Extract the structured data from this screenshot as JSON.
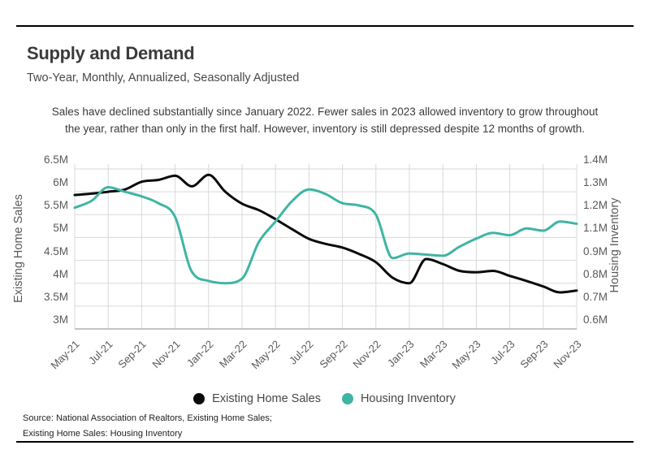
{
  "header": {
    "title": "Supply and Demand",
    "subtitle": "Two-Year, Monthly, Annualized, Seasonally Adjusted"
  },
  "annotation": {
    "line1": "Sales have declined substantially since January 2022. Fewer sales in 2023 allowed inventory to grow throughout",
    "line2": "the year, rather than only in the first half. However, inventory is still depressed despite 12 months of growth."
  },
  "chart_data": {
    "type": "line",
    "x": [
      "May-21",
      "Jun-21",
      "Jul-21",
      "Aug-21",
      "Sep-21",
      "Oct-21",
      "Nov-21",
      "Dec-21",
      "Jan-22",
      "Feb-22",
      "Mar-22",
      "Apr-22",
      "May-22",
      "Jun-22",
      "Jul-22",
      "Aug-22",
      "Sep-22",
      "Oct-22",
      "Nov-22",
      "Dec-22",
      "Jan-23",
      "Feb-23",
      "Mar-23",
      "Apr-23",
      "May-23",
      "Jun-23",
      "Jul-23",
      "Aug-23",
      "Sep-23",
      "Oct-23",
      "Nov-23"
    ],
    "x_tick_labels": [
      "May-21",
      "Jul-21",
      "Sep-21",
      "Nov-21",
      "Jan-22",
      "Mar-22",
      "May-22",
      "Jul-22",
      "Sep-22",
      "Nov-22",
      "Jan-23",
      "Mar-23",
      "May-23",
      "Jul-23",
      "Sep-23",
      "Nov-23"
    ],
    "series": [
      {
        "name": "Existing Home Sales",
        "axis": "left",
        "color": "#0a0a0a",
        "values": [
          5.93,
          5.96,
          6.0,
          6.05,
          6.22,
          6.26,
          6.35,
          6.12,
          6.37,
          6.0,
          5.74,
          5.6,
          5.4,
          5.18,
          4.97,
          4.86,
          4.78,
          4.64,
          4.46,
          4.12,
          4.0,
          4.53,
          4.42,
          4.27,
          4.24,
          4.27,
          4.16,
          4.05,
          3.93,
          3.8,
          3.84
        ]
      },
      {
        "name": "Housing Inventory",
        "axis": "right",
        "color": "#3fb5a3",
        "values": [
          1.23,
          1.26,
          1.32,
          1.3,
          1.28,
          1.25,
          1.19,
          0.85,
          0.81,
          0.8,
          0.82,
          1.06,
          1.17,
          1.26,
          1.31,
          1.29,
          1.25,
          1.24,
          1.2,
          0.92,
          0.96,
          0.95,
          0.94,
          1.02,
          1.09,
          1.12,
          1.11,
          1.14,
          1.13,
          1.17,
          1.16
        ]
      }
    ],
    "left_axis": {
      "title": "Existing Home Sales",
      "ticks": [
        "6.5M",
        "6M",
        "5.5M",
        "5M",
        "4.5M",
        "4M",
        "3.5M",
        "3M"
      ],
      "tick_values": [
        6.5,
        6.0,
        5.5,
        5.0,
        4.5,
        4.0,
        3.5,
        3.0
      ]
    },
    "right_axis": {
      "title": "Housing Inventory",
      "ticks": [
        "1.4M",
        "1.3M",
        "1.2M",
        "1.1M",
        "0.9M",
        "0.8M",
        "0.7M",
        "0.6M"
      ],
      "tick_values": [
        1.4,
        1.3,
        1.2,
        1.1,
        0.9,
        0.8,
        0.7,
        0.6
      ]
    },
    "grid": true,
    "x_label_rotation": -45,
    "legend_position": "bottom"
  },
  "legend": {
    "items": [
      {
        "label": "Existing Home Sales",
        "color": "#0a0a0a"
      },
      {
        "label": "Housing Inventory",
        "color": "#3fb5a3"
      }
    ]
  },
  "source": {
    "line1": "Source:  National Association of Realtors, Existing Home Sales;",
    "line2": "Existing Home Sales: Housing Inventory"
  },
  "colors": {
    "grid": "#d9d9d9",
    "axis_line": "#b0b0b0",
    "rule": "#000000"
  }
}
